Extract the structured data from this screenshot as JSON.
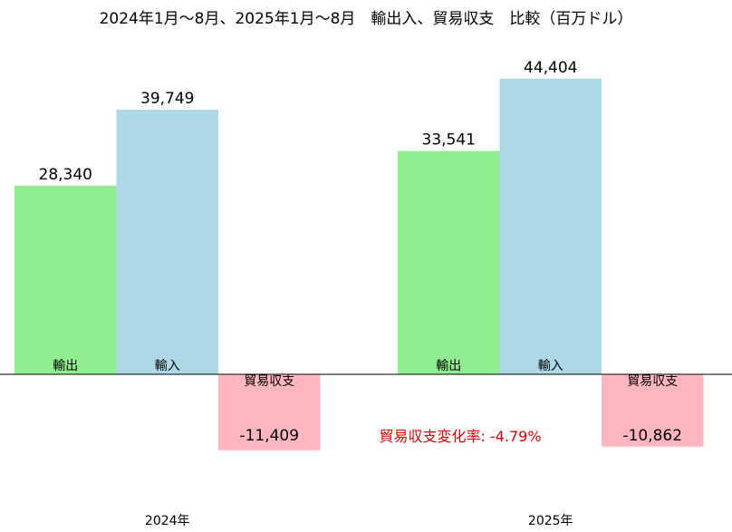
{
  "chart_data": {
    "type": "bar",
    "title": "2024年1月～8月、2025年1月～8月　輸出入、貿易収支　比較（百万ドル）",
    "categories": [
      "2024年",
      "2025年"
    ],
    "series": [
      {
        "name": "輸出",
        "values": [
          28340,
          33541
        ],
        "labels": [
          "28,340",
          "33,541"
        ],
        "color": "#90ee90"
      },
      {
        "name": "輸入",
        "values": [
          39749,
          44404
        ],
        "labels": [
          "39,749",
          "44,404"
        ],
        "color": "#add8e6"
      },
      {
        "name": "貿易収支",
        "values": [
          -11409,
          -10862
        ],
        "labels": [
          "-11,409",
          "-10,862"
        ],
        "color": "#ffb6c1"
      }
    ],
    "annotation": {
      "label": "貿易収支変化率",
      "value": "-4.79%",
      "text": "貿易収支変化率: -4.79%",
      "color": "#e00000"
    },
    "ylim": [
      -17500,
      49500
    ],
    "grid": false,
    "legend": "none"
  }
}
